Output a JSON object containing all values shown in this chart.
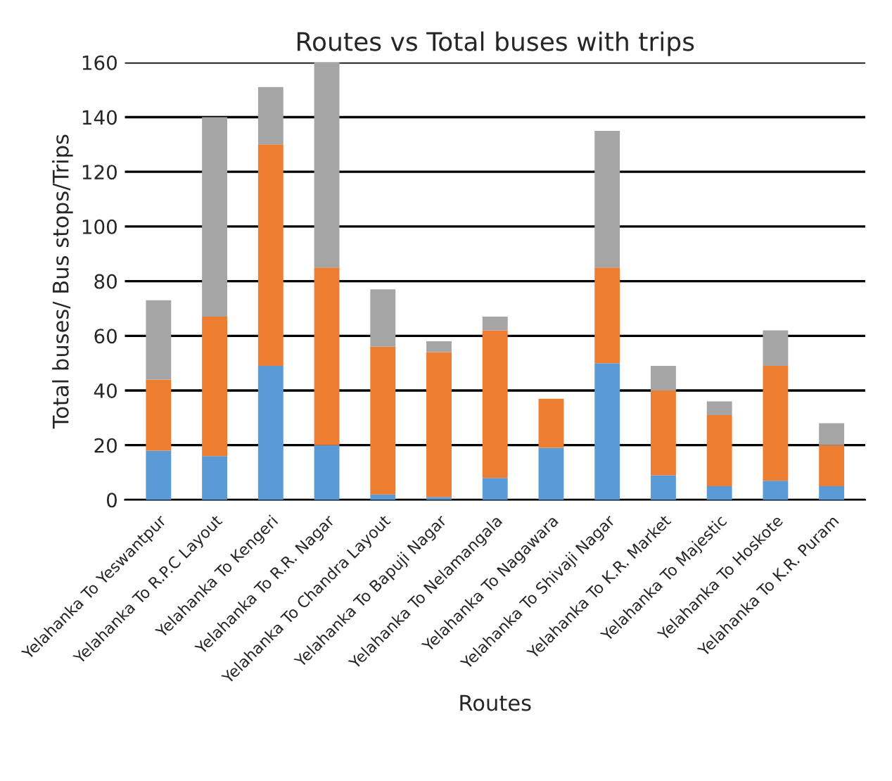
{
  "chart_data": {
    "type": "bar",
    "stacked": true,
    "title": "Routes vs Total buses with trips",
    "xlabel": "Routes",
    "ylabel": "Total buses/ Bus stops/Trips",
    "categories": [
      "Yelahanka To Yeswantpur",
      "Yelahanka To R.P.C Layout",
      "Yelahanka To Kengeri",
      "Yelahanka To R.R. Nagar",
      "Yelahanka To Chandra Layout",
      "Yelahanka To Bapuji Nagar",
      "Yelahanka To Nelamangala",
      "Yelahanka To Nagawara",
      "Yelahanka To Shivaji Nagar",
      "Yelahanka To K.R. Market",
      "Yelahanka To Majestic",
      "Yelahanka To Hoskote",
      "Yelahanka To K.R. Puram"
    ],
    "series": [
      {
        "color": "#5b9bd5",
        "values": [
          18,
          16,
          49,
          20,
          2,
          1,
          8,
          19,
          50,
          9,
          5,
          7,
          5
        ]
      },
      {
        "color": "#ed7d31",
        "values": [
          26,
          51,
          81,
          65,
          54,
          53,
          54,
          18,
          35,
          31,
          26,
          42,
          15
        ]
      },
      {
        "color": "#a5a5a5",
        "values": [
          29,
          73,
          21,
          75,
          21,
          4,
          5,
          0,
          50,
          9,
          5,
          13,
          8
        ]
      }
    ],
    "ylim": [
      0,
      160
    ],
    "yticks": [
      0,
      20,
      40,
      60,
      80,
      100,
      120,
      140,
      160
    ],
    "grid": "y",
    "legend": false
  }
}
